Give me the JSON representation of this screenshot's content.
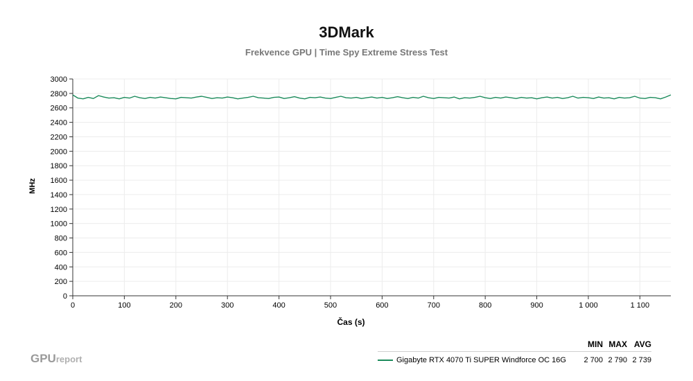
{
  "header": {
    "title": "3DMark",
    "subtitle": "Frekvence GPU | Time Spy Extreme Stress Test"
  },
  "brand": {
    "main": "GPU",
    "suffix": "report"
  },
  "legend": {
    "headers": [
      "MIN",
      "MAX",
      "AVG"
    ],
    "entries": [
      {
        "name": "Gigabyte RTX 4070 Ti SUPER Windforce OC 16G",
        "min": "2 700",
        "max": "2 790",
        "avg": "2 739",
        "color": "#1a8a5a"
      }
    ]
  },
  "chart_data": {
    "type": "line",
    "xlabel": "Čas (s)",
    "ylabel": "MHz",
    "xlim": [
      0,
      1160
    ],
    "ylim": [
      0,
      3000
    ],
    "x_ticks": [
      0,
      100,
      200,
      300,
      400,
      500,
      600,
      700,
      800,
      900,
      1000,
      1100
    ],
    "x_tick_labels": [
      "0",
      "100",
      "200",
      "300",
      "400",
      "500",
      "600",
      "700",
      "800",
      "900",
      "1 000",
      "1 100"
    ],
    "y_ticks": [
      0,
      200,
      400,
      600,
      800,
      1000,
      1200,
      1400,
      1600,
      1800,
      2000,
      2200,
      2400,
      2600,
      2800,
      3000
    ],
    "grid": true,
    "legend_position": "bottom-right",
    "series": [
      {
        "name": "Gigabyte RTX 4070 Ti SUPER Windforce OC 16G",
        "color": "#1a8a5a",
        "x": [
          0,
          10,
          20,
          30,
          40,
          50,
          60,
          70,
          80,
          90,
          100,
          110,
          120,
          130,
          140,
          150,
          160,
          170,
          180,
          190,
          200,
          210,
          220,
          230,
          240,
          250,
          260,
          270,
          280,
          290,
          300,
          310,
          320,
          330,
          340,
          350,
          360,
          370,
          380,
          390,
          400,
          410,
          420,
          430,
          440,
          450,
          460,
          470,
          480,
          490,
          500,
          510,
          520,
          530,
          540,
          550,
          560,
          570,
          580,
          590,
          600,
          610,
          620,
          630,
          640,
          650,
          660,
          670,
          680,
          690,
          700,
          710,
          720,
          730,
          740,
          750,
          760,
          770,
          780,
          790,
          800,
          810,
          820,
          830,
          840,
          850,
          860,
          870,
          880,
          890,
          900,
          910,
          920,
          930,
          940,
          950,
          960,
          970,
          980,
          990,
          1000,
          1010,
          1020,
          1030,
          1040,
          1050,
          1060,
          1070,
          1080,
          1090,
          1100,
          1110,
          1120,
          1130,
          1140,
          1150,
          1160
        ],
        "values": [
          2780,
          2735,
          2725,
          2745,
          2730,
          2770,
          2750,
          2735,
          2740,
          2725,
          2745,
          2735,
          2760,
          2740,
          2730,
          2745,
          2735,
          2750,
          2740,
          2730,
          2725,
          2745,
          2740,
          2735,
          2750,
          2760,
          2745,
          2730,
          2740,
          2735,
          2750,
          2740,
          2725,
          2735,
          2745,
          2760,
          2740,
          2735,
          2730,
          2745,
          2750,
          2730,
          2740,
          2755,
          2735,
          2725,
          2745,
          2740,
          2750,
          2735,
          2730,
          2745,
          2760,
          2740,
          2735,
          2745,
          2730,
          2740,
          2750,
          2735,
          2745,
          2730,
          2740,
          2755,
          2740,
          2730,
          2745,
          2735,
          2760,
          2740,
          2730,
          2745,
          2740,
          2735,
          2750,
          2725,
          2740,
          2735,
          2745,
          2760,
          2740,
          2730,
          2745,
          2735,
          2750,
          2740,
          2730,
          2745,
          2735,
          2740,
          2725,
          2740,
          2750,
          2735,
          2745,
          2730,
          2740,
          2760,
          2735,
          2745,
          2740,
          2730,
          2750,
          2735,
          2740,
          2725,
          2745,
          2735,
          2740,
          2760,
          2735,
          2730,
          2745,
          2740,
          2725,
          2750,
          2780
        ]
      }
    ]
  }
}
